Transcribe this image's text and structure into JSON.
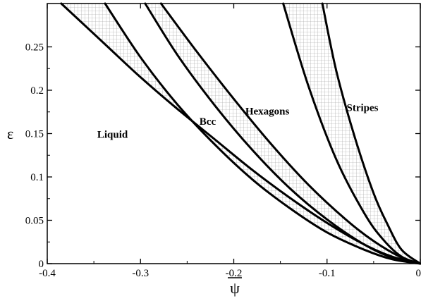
{
  "chart_data": {
    "type": "line",
    "xlabel": "ψ",
    "ylabel": "ε",
    "xlim": [
      -0.4,
      0
    ],
    "ylim": [
      0,
      0.3
    ],
    "grid": false,
    "x_ticks": [
      "-0.4",
      "-0.3",
      "-0.2",
      "-0.1",
      "0"
    ],
    "y_ticks": [
      "0",
      "0.05",
      "0.1",
      "0.15",
      "0.2",
      "0.25"
    ],
    "regions": [
      "Liquid",
      "Bcc",
      "Hexagons",
      "Stripes"
    ],
    "coexistence_fill": "crosshatch",
    "series": [
      {
        "x": [
          -0.385,
          -0.34,
          -0.3,
          -0.26,
          -0.22,
          -0.18,
          -0.14,
          -0.1,
          -0.06,
          -0.03,
          0
        ],
        "y": [
          0.3,
          0.255,
          0.215,
          0.178,
          0.143,
          0.108,
          0.076,
          0.047,
          0.022,
          0.008,
          0
        ]
      },
      {
        "x": [
          -0.338,
          -0.3,
          -0.26,
          -0.22,
          -0.18,
          -0.14,
          -0.1,
          -0.06,
          -0.03,
          0
        ],
        "y": [
          0.3,
          0.238,
          0.183,
          0.137,
          0.097,
          0.064,
          0.036,
          0.016,
          0.005,
          0
        ]
      },
      {
        "x": [
          -0.295,
          -0.26,
          -0.22,
          -0.18,
          -0.14,
          -0.1,
          -0.06,
          -0.03,
          0
        ],
        "y": [
          0.3,
          0.24,
          0.182,
          0.131,
          0.087,
          0.051,
          0.022,
          0.007,
          0
        ]
      },
      {
        "x": [
          -0.278,
          -0.24,
          -0.2,
          -0.16,
          -0.12,
          -0.08,
          -0.05,
          -0.02,
          0
        ],
        "y": [
          0.3,
          0.245,
          0.19,
          0.138,
          0.091,
          0.051,
          0.026,
          0.007,
          0
        ]
      },
      {
        "x": [
          -0.147,
          -0.12,
          -0.09,
          -0.06,
          -0.04,
          -0.02,
          0
        ],
        "y": [
          0.3,
          0.205,
          0.12,
          0.058,
          0.028,
          0.008,
          0
        ]
      },
      {
        "x": [
          -0.105,
          -0.09,
          -0.07,
          -0.05,
          -0.035,
          -0.02,
          0
        ],
        "y": [
          0.3,
          0.222,
          0.145,
          0.081,
          0.045,
          0.016,
          0
        ]
      }
    ],
    "region_label_positions": [
      {
        "name": "Liquid",
        "x": -0.33,
        "y": 0.145
      },
      {
        "name": "Bcc",
        "x": -0.228,
        "y": 0.16
      },
      {
        "name": "Hexagons",
        "x": -0.164,
        "y": 0.172
      },
      {
        "name": "Stripes",
        "x": -0.062,
        "y": 0.176
      }
    ],
    "shaded_bands": [
      {
        "between": [
          0,
          1
        ]
      },
      {
        "between": [
          2,
          3
        ]
      },
      {
        "between": [
          4,
          5
        ]
      }
    ]
  }
}
